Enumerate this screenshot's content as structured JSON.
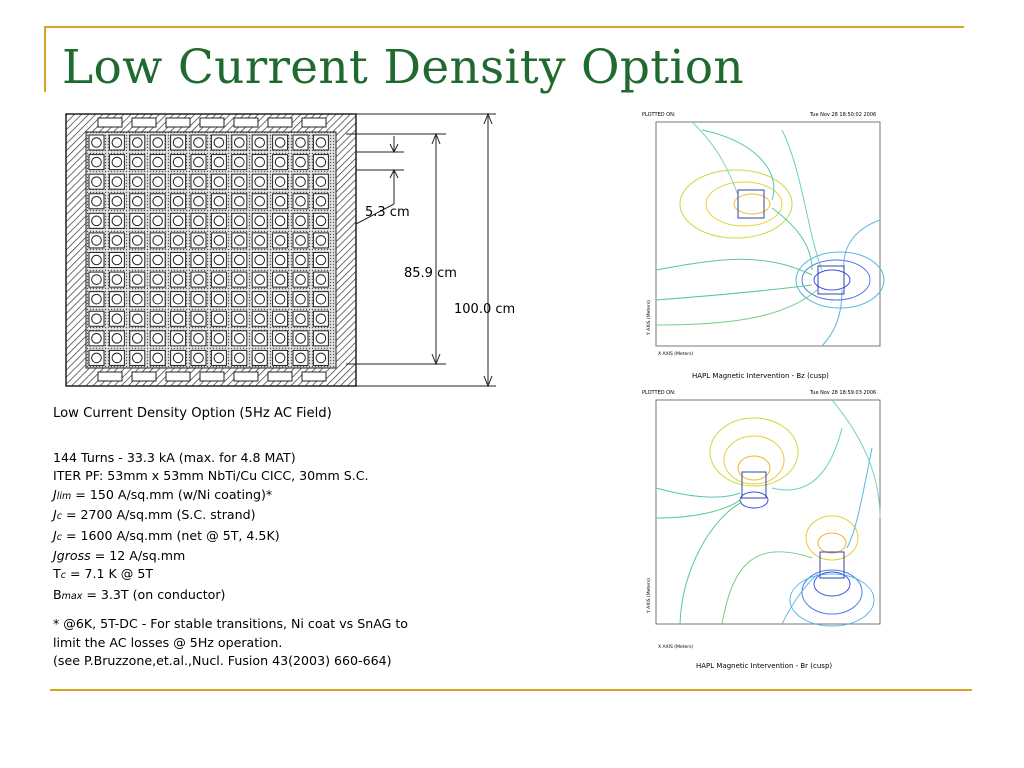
{
  "slide": {
    "title": "Low Current Density Option"
  },
  "cross_section": {
    "grid_rows": 12,
    "grid_cols": 12,
    "dimensions": {
      "cell": "5.3 cm",
      "inner": "85.9 cm",
      "outer": "100.0 cm"
    }
  },
  "specs": {
    "caption": "Low Current Density Option (5Hz AC Field)",
    "line1": "144 Turns - 33.3 kA (max. for 4.8 MAT)",
    "line2": "ITER PF: 53mm x 53mm NbTi/Cu CICC, 30mm S.C.",
    "jlim_sym": "J",
    "jlim_sub": "lim",
    "jlim_val": " = 150 A/sq.mm (w/Ni coating)*",
    "jc1_sym": "J",
    "jc1_sub": "c",
    "jc1_val": " = 2700 A/sq.mm (S.C. strand)",
    "jc2_sym": "J",
    "jc2_sub": "c",
    "jc2_val": " = 1600 A/sq.mm (net @ 5T, 4.5K)",
    "jgross_sym": "Jgross",
    "jgross_val": " = 12 A/sq.mm",
    "tc_sym": "T",
    "tc_sub": "c",
    "tc_val": " = 7.1 K @ 5T",
    "bmax_sym": "B",
    "bmax_sub": "max",
    "bmax_val": " = 3.3T (on conductor)",
    "note1": "* @6K, 5T-DC - For stable transitions, Ni coat vs SnAG to",
    "note2": "limit the AC losses @ 5Hz operation.",
    "note3": "(see P.Bruzzone,et.al.,Nucl. Fusion 43(2003) 660-664)"
  },
  "plots": [
    {
      "plotted_on": "PLOTTED ON:",
      "timestamp": "Tue Nov 28 18:50:02 2006",
      "xaxis": "X AXIS (Meters)",
      "yaxis": "Y AXIS (Meters)",
      "caption": "HAPL Magnetic Intervention - Bz (cusp)"
    },
    {
      "plotted_on": "PLOTTED ON:",
      "timestamp": "Tue Nov 28 18:59:03 2006",
      "xaxis": "X AXIS (Meters)",
      "yaxis": "Y AXIS (Meters)",
      "caption": "HAPL Magnetic Intervention - Br (cusp)"
    }
  ],
  "colors": {
    "title": "#1f6a2e",
    "accent_line": "#d9a520"
  }
}
